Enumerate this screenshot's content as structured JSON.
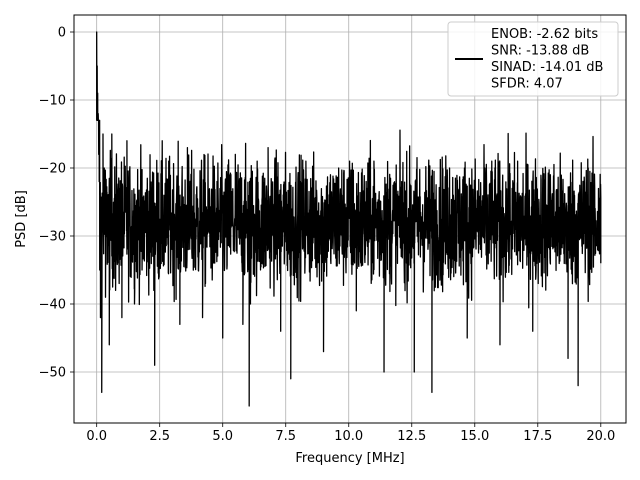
{
  "chart_data": {
    "type": "line",
    "title": "",
    "xlabel": "Frequency [MHz]",
    "ylabel": "PSD [dB]",
    "xlim": [
      -0.9,
      21.0
    ],
    "ylim": [
      -57.5,
      2.5
    ],
    "x_ticks": [
      0.0,
      2.5,
      5.0,
      7.5,
      10.0,
      12.5,
      15.0,
      17.5,
      20.0
    ],
    "x_tick_labels": [
      "0.0",
      "2.5",
      "5.0",
      "7.5",
      "10.0",
      "12.5",
      "15.0",
      "17.5",
      "20.0"
    ],
    "y_ticks": [
      0,
      -10,
      -20,
      -30,
      -40,
      -50
    ],
    "y_tick_labels": [
      "0",
      "−10",
      "−20",
      "−30",
      "−40",
      "−50"
    ],
    "grid": true,
    "legend_position": "top-right",
    "series_color": "#000000",
    "noise_floor": {
      "x_range": [
        0.0,
        20.0
      ],
      "center_db": -28,
      "typical_upper_db": -20,
      "typical_lower_db": -36,
      "peak_upper_db": -13,
      "deepest_notch_db": -55
    },
    "series": [
      {
        "x": [
          0.0,
          0.02,
          0.04,
          0.06,
          0.08,
          0.1,
          0.12,
          0.15,
          0.2,
          0.25,
          0.3,
          0.35,
          0.4,
          0.5,
          0.6,
          0.75,
          0.9,
          1.0,
          1.2,
          1.5,
          1.8,
          2.3,
          2.6,
          3.3,
          3.6,
          4.2,
          4.6,
          5.0,
          5.5,
          5.8,
          6.0,
          6.05,
          6.1,
          6.8,
          7.3,
          7.7,
          8.3,
          9.0,
          9.6,
          10.3,
          11.0,
          11.4,
          12.1,
          12.6,
          13.3,
          14.0,
          14.7,
          15.4,
          16.0,
          16.7,
          17.3,
          18.0,
          18.7,
          19.1,
          19.5,
          20.0
        ],
        "y": [
          0.0,
          -5.0,
          -9.0,
          -12.0,
          -18.0,
          -22.0,
          -35.0,
          -42.0,
          -53.0,
          -15.0,
          -20.0,
          -39.0,
          -28.0,
          -46.0,
          -15.0,
          -38.0,
          -23.0,
          -42.0,
          -16.0,
          -40.0,
          -35.0,
          -49.0,
          -16.0,
          -43.0,
          -17.0,
          -42.0,
          -30.0,
          -45.0,
          -18.0,
          -43.0,
          -35.0,
          -55.0,
          -40.0,
          -17.0,
          -44.0,
          -51.0,
          -19.0,
          -47.0,
          -20.0,
          -41.0,
          -19.0,
          -50.0,
          -22.0,
          -50.0,
          -53.0,
          -20.0,
          -45.0,
          -20.0,
          -46.0,
          -19.0,
          -44.0,
          -21.0,
          -48.0,
          -52.0,
          -20.0,
          -34.0
        ]
      }
    ],
    "legend": {
      "lines": [
        "ENOB: -2.62 bits",
        "SNR: -13.88 dB",
        "SINAD: -14.01 dB",
        "SFDR: 4.07"
      ]
    }
  }
}
